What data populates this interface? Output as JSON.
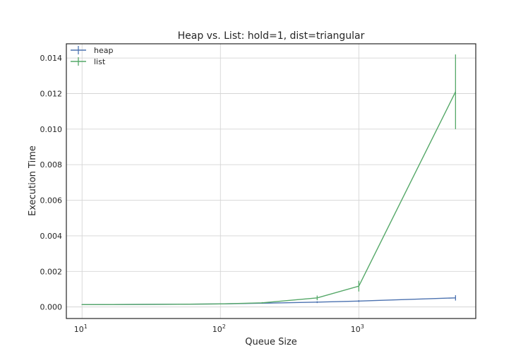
{
  "chart_data": {
    "type": "line",
    "title": "Heap vs. List: hold=1, dist=triangular",
    "xlabel": "Queue Size",
    "ylabel": "Execution Time",
    "xscale": "log",
    "xlim": [
      7.7,
      7000
    ],
    "ylim": [
      -0.00065,
      0.0148
    ],
    "grid": true,
    "legend_position": "top-left",
    "x_ticks": [
      {
        "value": 10,
        "base": "10",
        "exp": "1"
      },
      {
        "value": 100,
        "base": "10",
        "exp": "2"
      },
      {
        "value": 1000,
        "base": "10",
        "exp": "3"
      }
    ],
    "y_ticks": [
      {
        "value": 0.0,
        "label": "0.000"
      },
      {
        "value": 0.002,
        "label": "0.002"
      },
      {
        "value": 0.004,
        "label": "0.004"
      },
      {
        "value": 0.006,
        "label": "0.006"
      },
      {
        "value": 0.008,
        "label": "0.008"
      },
      {
        "value": 0.01,
        "label": "0.010"
      },
      {
        "value": 0.012,
        "label": "0.012"
      },
      {
        "value": 0.014,
        "label": "0.014"
      }
    ],
    "x": [
      10,
      50,
      100,
      200,
      500,
      1000,
      5000
    ],
    "series": [
      {
        "name": "heap",
        "color": "#4c72b0",
        "values": [
          0.00013,
          0.00015,
          0.00017,
          0.00021,
          0.00027,
          0.00033,
          0.00051
        ],
        "errors": [
          2e-05,
          2e-05,
          2e-05,
          3e-05,
          5e-05,
          5e-05,
          0.00015
        ]
      },
      {
        "name": "list",
        "color": "#55a868",
        "values": [
          0.00013,
          0.00015,
          0.00017,
          0.00023,
          0.00051,
          0.00117,
          0.0121
        ],
        "errors": [
          2e-05,
          2e-05,
          2e-05,
          4e-05,
          0.00013,
          0.0003,
          0.0021
        ]
      }
    ]
  }
}
